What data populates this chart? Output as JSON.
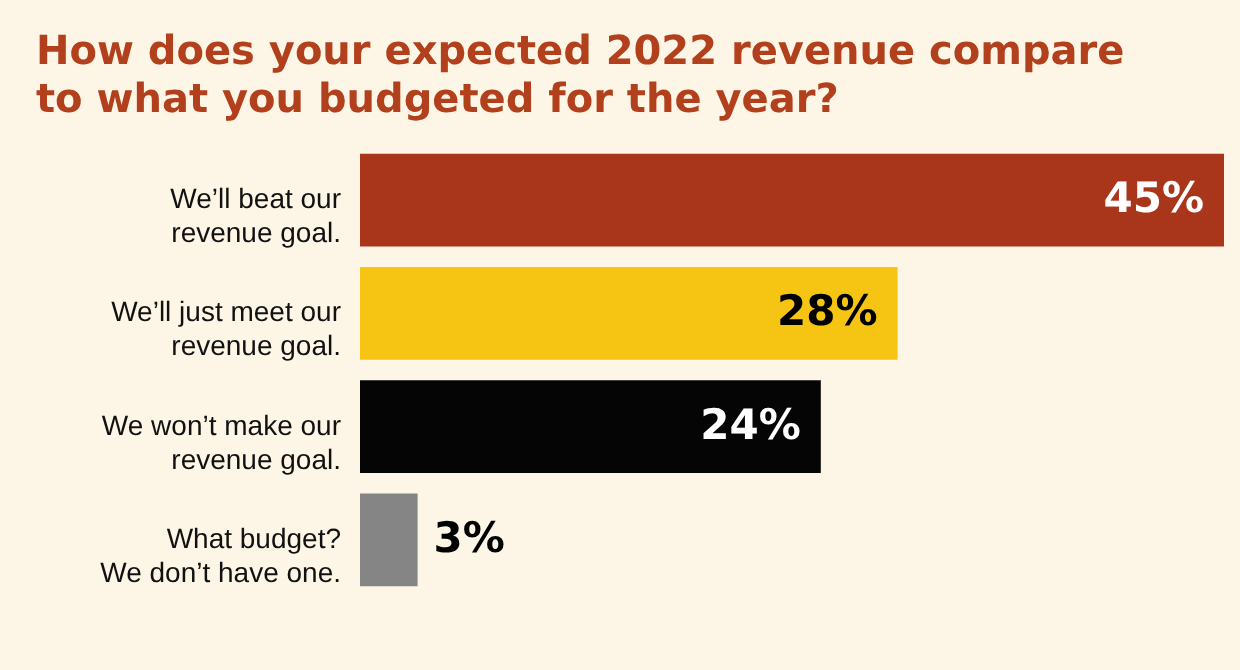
{
  "chart_data": {
    "type": "bar",
    "orientation": "horizontal",
    "title": "How does your expected 2022 revenue compare\nto what you budgeted for the year?",
    "categories": [
      "We’ll beat our\nrevenue goal.",
      "We’ll just meet our\nrevenue goal.",
      "We won’t make our\nrevenue goal.",
      "What budget?\nWe don’t have one."
    ],
    "values": [
      45,
      28,
      24,
      3
    ],
    "colors": [
      "#a9351a",
      "#f6c413",
      "#050505",
      "#858585"
    ],
    "value_labels": [
      "45%",
      "28%",
      "24%",
      "3%"
    ]
  }
}
